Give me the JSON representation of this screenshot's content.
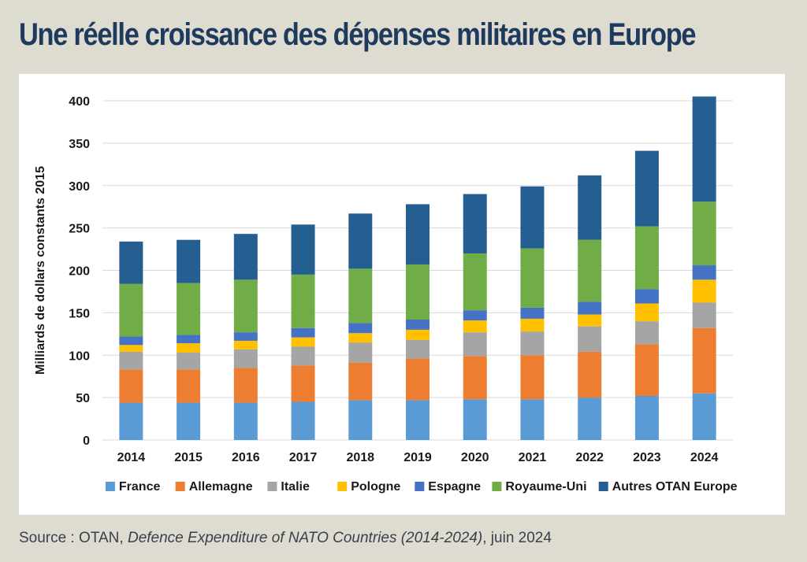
{
  "page": {
    "title": "Une réelle croissance des dépenses militaires en Europe",
    "source_prefix": "Source : OTAN, ",
    "source_work": "Defence Expenditure of NATO Countries (2014-2024)",
    "source_suffix": ", juin 2024"
  },
  "colors": {
    "background": "#dedbd1",
    "title": "#1e3a5c",
    "grid": "#d9d9d9"
  },
  "chart_data": {
    "type": "bar",
    "stacked": true,
    "ylabel": "Milliards de dollars constants  2015",
    "xlabel": "",
    "ylim": [
      0,
      400
    ],
    "yticks": [
      0,
      50,
      100,
      150,
      200,
      250,
      300,
      350,
      400
    ],
    "grid": true,
    "legend_position": "bottom",
    "categories": [
      "2014",
      "2015",
      "2016",
      "2017",
      "2018",
      "2019",
      "2020",
      "2021",
      "2022",
      "2023",
      "2024"
    ],
    "series": [
      {
        "name": "France",
        "color": "#5b9bd5",
        "values": [
          44,
          44,
          44,
          45,
          47,
          47,
          48,
          48,
          50,
          52,
          55
        ]
      },
      {
        "name": "Allemagne",
        "color": "#ed7d31",
        "values": [
          39,
          39,
          41,
          43,
          44,
          49,
          51,
          52,
          54,
          61,
          77
        ]
      },
      {
        "name": "Italie",
        "color": "#a5a5a5",
        "values": [
          21,
          20,
          22,
          22,
          24,
          22,
          28,
          28,
          30,
          27,
          30
        ]
      },
      {
        "name": "Pologne",
        "color": "#ffc000",
        "values": [
          8,
          11,
          10,
          11,
          11,
          12,
          14,
          15,
          14,
          21,
          27
        ]
      },
      {
        "name": "Espagne",
        "color": "#4472c4",
        "values": [
          10,
          10,
          10,
          11,
          12,
          12,
          12,
          13,
          15,
          17,
          17
        ]
      },
      {
        "name": "Royaume-Uni",
        "color": "#70ad47",
        "values": [
          62,
          61,
          62,
          63,
          64,
          65,
          67,
          70,
          73,
          74,
          75
        ]
      },
      {
        "name": "Autres OTAN Europe",
        "color": "#255e91",
        "values": [
          50,
          51,
          54,
          59,
          65,
          71,
          70,
          73,
          76,
          89,
          124
        ]
      }
    ]
  }
}
